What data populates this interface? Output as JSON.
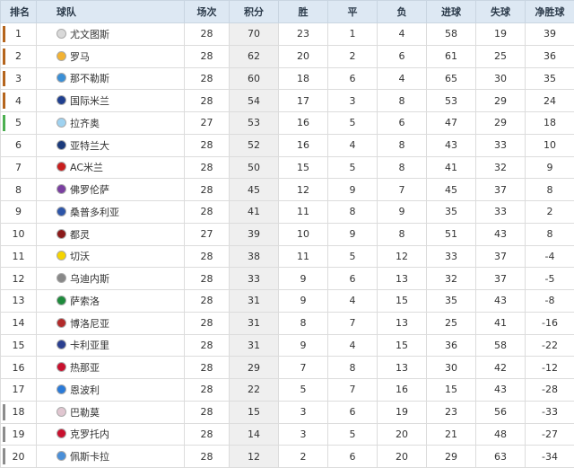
{
  "table": {
    "header": [
      "排名",
      "球队",
      "场次",
      "积分",
      "胜",
      "平",
      "负",
      "进球",
      "失球",
      "净胜球"
    ],
    "rows": [
      [
        1,
        "尤文图斯",
        28,
        70,
        23,
        1,
        4,
        58,
        19,
        39
      ],
      [
        2,
        "罗马",
        28,
        62,
        20,
        2,
        6,
        61,
        25,
        36
      ],
      [
        3,
        "那不勒斯",
        28,
        60,
        18,
        6,
        4,
        65,
        30,
        35
      ],
      [
        4,
        "国际米兰",
        28,
        54,
        17,
        3,
        8,
        53,
        29,
        24
      ],
      [
        5,
        "拉齐奥",
        27,
        53,
        16,
        5,
        6,
        47,
        29,
        18
      ],
      [
        6,
        "亚特兰大",
        28,
        52,
        16,
        4,
        8,
        43,
        33,
        10
      ],
      [
        7,
        "AC米兰",
        28,
        50,
        15,
        5,
        8,
        41,
        32,
        9
      ],
      [
        8,
        "佛罗伦萨",
        28,
        45,
        12,
        9,
        7,
        45,
        37,
        8
      ],
      [
        9,
        "桑普多利亚",
        28,
        41,
        11,
        8,
        9,
        35,
        33,
        2
      ],
      [
        10,
        "都灵",
        27,
        39,
        10,
        9,
        8,
        51,
        43,
        8
      ],
      [
        11,
        "切沃",
        28,
        38,
        11,
        5,
        12,
        33,
        37,
        -4
      ],
      [
        12,
        "乌迪内斯",
        28,
        33,
        9,
        6,
        13,
        32,
        37,
        -5
      ],
      [
        13,
        "萨索洛",
        28,
        31,
        9,
        4,
        15,
        35,
        43,
        -8
      ],
      [
        14,
        "博洛尼亚",
        28,
        31,
        8,
        7,
        13,
        25,
        41,
        -16
      ],
      [
        15,
        "卡利亚里",
        28,
        31,
        9,
        4,
        15,
        36,
        58,
        -22
      ],
      [
        16,
        "热那亚",
        28,
        29,
        7,
        8,
        13,
        30,
        42,
        -12
      ],
      [
        17,
        "恩波利",
        28,
        22,
        5,
        7,
        16,
        15,
        43,
        -28
      ],
      [
        18,
        "巴勒莫",
        28,
        15,
        3,
        6,
        19,
        23,
        56,
        -33
      ],
      [
        19,
        "克罗托内",
        28,
        14,
        3,
        5,
        20,
        21,
        48,
        -27
      ],
      [
        20,
        "佩斯卡拉",
        28,
        12,
        2,
        6,
        20,
        29,
        63,
        -34
      ]
    ]
  }
}
